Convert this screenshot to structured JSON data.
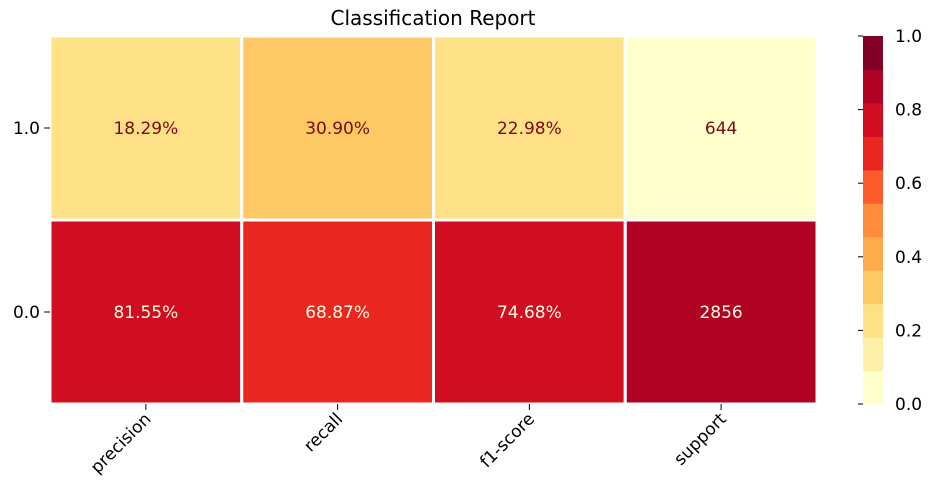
{
  "chart_data": {
    "type": "heatmap",
    "title": "Classification Report",
    "xlabel": "",
    "ylabel": "",
    "x_categories": [
      "precision",
      "recall",
      "f1-score",
      "support"
    ],
    "y_categories": [
      "1.0",
      "0.0"
    ],
    "cells": [
      [
        0.1829,
        0.309,
        0.2298,
        0.0
      ],
      [
        0.8155,
        0.6887,
        0.7468,
        0.82
      ]
    ],
    "cell_labels": [
      [
        "18.29%",
        "30.90%",
        "22.98%",
        "644"
      ],
      [
        "81.55%",
        "68.87%",
        "74.68%",
        "2856"
      ]
    ],
    "colorbar": {
      "range": [
        0,
        1
      ],
      "ticks": [
        "0.0",
        "0.2",
        "0.4",
        "0.6",
        "0.8",
        "1.0"
      ],
      "tick_values": [
        0,
        0.2,
        0.4,
        0.6,
        0.8,
        1.0
      ],
      "colors": [
        "#ffffcc",
        "#fff0a9",
        "#fee087",
        "#fec965",
        "#feab4b",
        "#fd8d3c",
        "#fc5b2e",
        "#e92720",
        "#d00d21",
        "#af0225",
        "#800026"
      ],
      "cmap": "YlOrRd"
    },
    "grid": false,
    "legend": "right"
  }
}
